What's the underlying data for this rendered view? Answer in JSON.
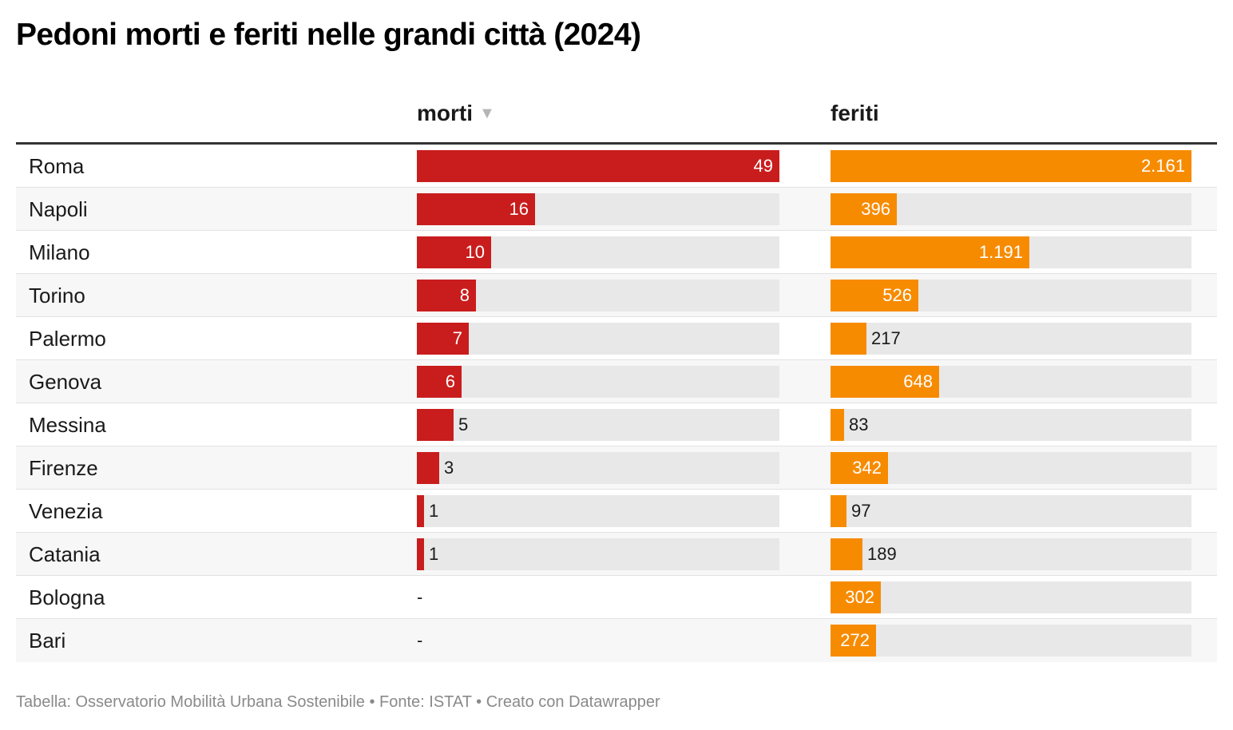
{
  "title": "Pedoni morti e feriti nelle grandi città (2024)",
  "columns": {
    "morti": "morti",
    "feriti": "feriti"
  },
  "sort_icon": "▼",
  "colors": {
    "morti": "#c91d1d",
    "feriti": "#f78b00",
    "track": "#e8e8e8"
  },
  "chart_data": {
    "type": "table",
    "columns": [
      "morti",
      "feriti"
    ],
    "sorted_by": "morti",
    "sort_order": "descending",
    "rows": [
      {
        "city": "Roma",
        "morti": 49,
        "feriti": 2161,
        "morti_label": "49",
        "feriti_label": "2.161"
      },
      {
        "city": "Napoli",
        "morti": 16,
        "feriti": 396,
        "morti_label": "16",
        "feriti_label": "396"
      },
      {
        "city": "Milano",
        "morti": 10,
        "feriti": 1191,
        "morti_label": "10",
        "feriti_label": "1.191"
      },
      {
        "city": "Torino",
        "morti": 8,
        "feriti": 526,
        "morti_label": "8",
        "feriti_label": "526"
      },
      {
        "city": "Palermo",
        "morti": 7,
        "feriti": 217,
        "morti_label": "7",
        "feriti_label": "217"
      },
      {
        "city": "Genova",
        "morti": 6,
        "feriti": 648,
        "morti_label": "6",
        "feriti_label": "648"
      },
      {
        "city": "Messina",
        "morti": 5,
        "feriti": 83,
        "morti_label": "5",
        "feriti_label": "83"
      },
      {
        "city": "Firenze",
        "morti": 3,
        "feriti": 342,
        "morti_label": "3",
        "feriti_label": "342"
      },
      {
        "city": "Venezia",
        "morti": 1,
        "feriti": 97,
        "morti_label": "1",
        "feriti_label": "97"
      },
      {
        "city": "Catania",
        "morti": 1,
        "feriti": 189,
        "morti_label": "1",
        "feriti_label": "189"
      },
      {
        "city": "Bologna",
        "morti": null,
        "feriti": 302,
        "morti_label": "-",
        "feriti_label": "302"
      },
      {
        "city": "Bari",
        "morti": null,
        "feriti": 272,
        "morti_label": "-",
        "feriti_label": "272"
      }
    ]
  },
  "footer": "Tabella: Osservatorio Mobilità Urbana Sostenibile • Fonte: ISTAT • Creato con Datawrapper"
}
